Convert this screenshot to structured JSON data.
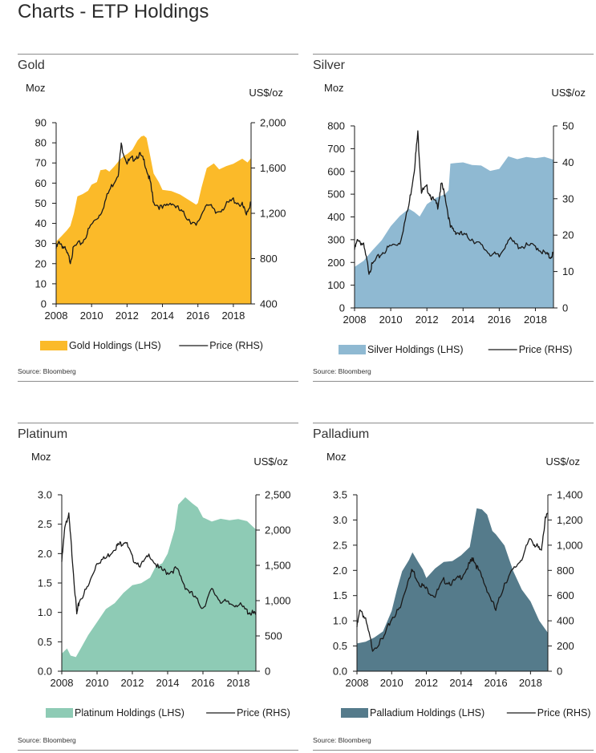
{
  "page_title": "Charts - ETP Holdings",
  "chart_data": [
    {
      "type": "area",
      "title": "Gold",
      "source": "Source: Bloomberg",
      "left_axis_label": "Moz",
      "right_axis_label": "US$/oz",
      "x_range": [
        2008,
        2019
      ],
      "x_ticks": [
        "2008",
        "2010",
        "2012",
        "2014",
        "2016",
        "2018"
      ],
      "ylim_left": [
        0,
        90
      ],
      "yticks_left": [
        "0",
        "10",
        "20",
        "30",
        "40",
        "50",
        "60",
        "70",
        "80",
        "90"
      ],
      "ylim_right": [
        400,
        2000
      ],
      "yticks_right": [
        "400",
        "800",
        "1,200",
        "1,600",
        "2,000"
      ],
      "area_color": "#fbba29",
      "line_color": "#1a1a1a",
      "legend": {
        "area": "Gold Holdings (LHS)",
        "line": "Price (RHS)"
      },
      "series": [
        {
          "name": "Gold Holdings (LHS)",
          "axis": "left",
          "x": [
            2008.0,
            2008.3,
            2008.6,
            2008.8,
            2009.0,
            2009.2,
            2009.5,
            2009.8,
            2010.0,
            2010.3,
            2010.5,
            2010.8,
            2011.0,
            2011.3,
            2011.6,
            2011.9,
            2012.0,
            2012.3,
            2012.6,
            2012.8,
            2012.95,
            2013.1,
            2013.3,
            2013.5,
            2013.8,
            2014.0,
            2014.5,
            2015.0,
            2015.5,
            2015.9,
            2016.0,
            2016.2,
            2016.5,
            2016.9,
            2017.2,
            2017.6,
            2018.0,
            2018.5,
            2018.8,
            2019.0
          ],
          "values": [
            31,
            34,
            36,
            39,
            45,
            53,
            55,
            56,
            59,
            61,
            66,
            67,
            66,
            68,
            72,
            74,
            74,
            77,
            81,
            83,
            84,
            82,
            74,
            65,
            60,
            57,
            56,
            54,
            52,
            49,
            50,
            58,
            67,
            70,
            67,
            68,
            70,
            72,
            70,
            73
          ]
        },
        {
          "name": "Price (RHS)",
          "axis": "right",
          "x": [
            2008.0,
            2008.2,
            2008.5,
            2008.8,
            2009.0,
            2009.5,
            2010.0,
            2010.5,
            2011.0,
            2011.5,
            2011.67,
            2012.0,
            2012.3,
            2012.7,
            2013.0,
            2013.3,
            2013.5,
            2014.0,
            2014.5,
            2015.0,
            2015.5,
            2015.9,
            2016.5,
            2017.0,
            2017.5,
            2018.0,
            2018.5,
            2018.7,
            2019.0
          ],
          "values": [
            890,
            950,
            880,
            780,
            900,
            950,
            1100,
            1200,
            1400,
            1550,
            1800,
            1650,
            1680,
            1720,
            1650,
            1480,
            1300,
            1240,
            1300,
            1220,
            1150,
            1080,
            1300,
            1200,
            1260,
            1320,
            1270,
            1200,
            1290
          ]
        }
      ]
    },
    {
      "type": "area",
      "title": "Silver",
      "source": "Source: Bloomberg",
      "left_axis_label": "Moz",
      "right_axis_label": "US$/oz",
      "x_range": [
        2008,
        2019
      ],
      "x_ticks": [
        "2008",
        "2010",
        "2012",
        "2014",
        "2016",
        "2018"
      ],
      "ylim_left": [
        0,
        800
      ],
      "yticks_left": [
        "0",
        "100",
        "200",
        "300",
        "400",
        "500",
        "600",
        "700",
        "800"
      ],
      "ylim_right": [
        0,
        50
      ],
      "yticks_right": [
        "0",
        "10",
        "20",
        "30",
        "40",
        "50"
      ],
      "area_color": "#8fb9d2",
      "line_color": "#1a1a1a",
      "legend": {
        "area": "Silver Holdings (LHS)",
        "line": "Price (RHS)"
      },
      "series": [
        {
          "name": "Silver Holdings (LHS)",
          "axis": "left",
          "x": [
            2008.0,
            2008.5,
            2009.0,
            2009.5,
            2010.0,
            2010.5,
            2011.0,
            2011.3,
            2011.6,
            2012.0,
            2012.5,
            2013.0,
            2013.2,
            2013.3,
            2013.6,
            2014.0,
            2014.5,
            2015.0,
            2015.5,
            2016.0,
            2016.5,
            2017.0,
            2017.5,
            2018.0,
            2018.5,
            2019.0
          ],
          "values": [
            180,
            210,
            250,
            300,
            360,
            400,
            440,
            420,
            400,
            460,
            480,
            500,
            520,
            630,
            640,
            640,
            625,
            630,
            600,
            610,
            670,
            650,
            665,
            660,
            660,
            655
          ]
        },
        {
          "name": "Price (RHS)",
          "axis": "right",
          "x": [
            2008.0,
            2008.2,
            2008.5,
            2008.8,
            2009.0,
            2009.5,
            2010.0,
            2010.5,
            2011.0,
            2011.3,
            2011.5,
            2011.7,
            2012.0,
            2012.3,
            2012.6,
            2012.8,
            2013.0,
            2013.3,
            2013.6,
            2014.0,
            2014.5,
            2015.0,
            2015.5,
            2016.0,
            2016.5,
            2017.0,
            2017.5,
            2018.0,
            2018.5,
            2018.8,
            2019.0
          ],
          "values": [
            16,
            19,
            17,
            10,
            12,
            15,
            17,
            18,
            28,
            38,
            48,
            32,
            33,
            30,
            28,
            34,
            31,
            22,
            21,
            20,
            19,
            17,
            15,
            14,
            19,
            17,
            17,
            17,
            15,
            14,
            15
          ]
        }
      ]
    },
    {
      "type": "area",
      "title": "Platinum",
      "source": "Source: Bloomberg",
      "left_axis_label": "Moz",
      "right_axis_label": "US$/oz",
      "x_range": [
        2008,
        2019
      ],
      "x_ticks": [
        "2008",
        "2010",
        "2012",
        "2014",
        "2016",
        "2018"
      ],
      "ylim_left": [
        0,
        3.0
      ],
      "yticks_left": [
        "0.0",
        "0.5",
        "1.0",
        "1.5",
        "2.0",
        "2.5",
        "3.0"
      ],
      "ylim_right": [
        0,
        2500
      ],
      "yticks_right": [
        "0",
        "500",
        "1,000",
        "1,500",
        "2,000",
        "2,500"
      ],
      "area_color": "#8ecbb5",
      "line_color": "#1a1a1a",
      "legend": {
        "area": "Platinum Holdings (LHS)",
        "line": "Price (RHS)"
      },
      "series": [
        {
          "name": "Platinum Holdings (LHS)",
          "axis": "left",
          "x": [
            2008.0,
            2008.3,
            2008.5,
            2008.8,
            2009.0,
            2009.5,
            2010.0,
            2010.5,
            2011.0,
            2011.5,
            2012.0,
            2012.5,
            2013.0,
            2013.3,
            2013.7,
            2014.0,
            2014.4,
            2014.6,
            2015.0,
            2015.4,
            2015.7,
            2016.0,
            2016.5,
            2017.0,
            2017.5,
            2018.0,
            2018.5,
            2019.0
          ],
          "values": [
            0.3,
            0.4,
            0.25,
            0.25,
            0.35,
            0.6,
            0.85,
            1.05,
            1.15,
            1.35,
            1.45,
            1.5,
            1.6,
            1.75,
            1.85,
            2.0,
            2.4,
            2.85,
            2.95,
            2.85,
            2.8,
            2.6,
            2.55,
            2.6,
            2.55,
            2.6,
            2.55,
            2.4
          ]
        },
        {
          "name": "Price (RHS)",
          "axis": "right",
          "x": [
            2008.0,
            2008.2,
            2008.4,
            2008.6,
            2008.85,
            2009.0,
            2009.5,
            2010.0,
            2010.5,
            2011.0,
            2011.3,
            2011.6,
            2012.0,
            2012.5,
            2013.0,
            2013.5,
            2014.0,
            2014.5,
            2015.0,
            2015.5,
            2016.0,
            2016.5,
            2017.0,
            2017.5,
            2018.0,
            2018.5,
            2018.8,
            2019.0
          ],
          "values": [
            1550,
            2100,
            2200,
            1600,
            800,
            1000,
            1200,
            1550,
            1600,
            1750,
            1800,
            1850,
            1600,
            1500,
            1650,
            1450,
            1400,
            1450,
            1200,
            1050,
            900,
            1150,
            1000,
            950,
            950,
            850,
            820,
            800
          ]
        }
      ]
    },
    {
      "type": "area",
      "title": "Palladium",
      "source": "Source: Bloomberg",
      "left_axis_label": "Moz",
      "right_axis_label": "US$/oz",
      "x_range": [
        2008,
        2019
      ],
      "x_ticks": [
        "2008",
        "2010",
        "2012",
        "2014",
        "2016",
        "2018"
      ],
      "ylim_left": [
        0,
        3.5
      ],
      "yticks_left": [
        "0.0",
        "0.5",
        "1.0",
        "1.5",
        "2.0",
        "2.5",
        "3.0",
        "3.5"
      ],
      "ylim_right": [
        0,
        1400
      ],
      "yticks_right": [
        "0",
        "200",
        "400",
        "600",
        "800",
        "1,000",
        "1,200",
        "1,400"
      ],
      "area_color": "#557b8b",
      "line_color": "#1a1a1a",
      "legend": {
        "area": "Palladium Holdings (LHS)",
        "line": "Price (RHS)"
      },
      "series": [
        {
          "name": "Palladium Holdings (LHS)",
          "axis": "left",
          "x": [
            2008.0,
            2008.5,
            2009.0,
            2009.5,
            2010.0,
            2010.3,
            2010.6,
            2011.0,
            2011.2,
            2011.5,
            2011.8,
            2012.0,
            2012.5,
            2013.0,
            2013.5,
            2014.0,
            2014.5,
            2014.9,
            2015.2,
            2015.5,
            2015.8,
            2016.0,
            2016.5,
            2017.0,
            2017.5,
            2018.0,
            2018.5,
            2019.0
          ],
          "values": [
            0.55,
            0.6,
            0.65,
            0.8,
            1.2,
            1.6,
            2.0,
            2.2,
            2.35,
            2.2,
            2.0,
            1.85,
            2.05,
            2.15,
            2.2,
            2.3,
            2.45,
            3.25,
            3.2,
            3.1,
            2.8,
            2.7,
            2.5,
            2.0,
            1.6,
            1.4,
            1.0,
            0.75
          ]
        },
        {
          "name": "Price (RHS)",
          "axis": "right",
          "x": [
            2008.0,
            2008.2,
            2008.5,
            2008.9,
            2009.5,
            2010.0,
            2010.5,
            2011.0,
            2011.2,
            2011.6,
            2012.0,
            2012.5,
            2013.0,
            2013.5,
            2014.0,
            2014.5,
            2014.7,
            2015.0,
            2015.5,
            2016.0,
            2016.5,
            2017.0,
            2017.5,
            2018.0,
            2018.3,
            2018.6,
            2018.85,
            2019.0
          ],
          "values": [
            350,
            500,
            400,
            180,
            250,
            420,
            500,
            750,
            800,
            700,
            650,
            600,
            720,
            700,
            750,
            850,
            900,
            800,
            650,
            480,
            700,
            800,
            900,
            1050,
            1000,
            950,
            1200,
            1250
          ]
        }
      ]
    }
  ]
}
